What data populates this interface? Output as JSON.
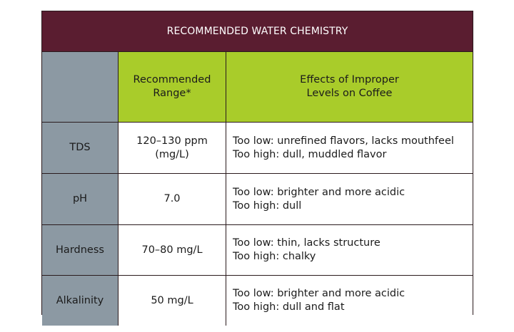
{
  "title": "RECOMMENDED WATER CHEMISTRY",
  "headers": {
    "range": [
      "Recommended",
      "Range*"
    ],
    "effects": [
      "Effects of Improper",
      "Levels on Coffee"
    ]
  },
  "rows": [
    {
      "label": "TDS",
      "range": [
        "120–130 ppm",
        "(mg/L)"
      ],
      "effects": [
        "Too low: unrefined flavors, lacks mouthfeel",
        "Too high: dull, muddled flavor"
      ]
    },
    {
      "label": "pH",
      "range": [
        "7.0"
      ],
      "effects": [
        "Too low: brighter and more acidic",
        "Too high: dull"
      ]
    },
    {
      "label": "Hardness",
      "range": [
        "70–80 mg/L"
      ],
      "effects": [
        "Too low: thin, lacks structure",
        "Too high: chalky"
      ]
    },
    {
      "label": "Alkalinity",
      "range": [
        "50 mg/L"
      ],
      "effects": [
        "Too low: brighter and more acidic",
        "Too high: dull and flat"
      ]
    }
  ],
  "colors": {
    "title_bg": "#5a1d30",
    "header_bg": "#a9cc2a",
    "label_bg": "#8c99a3",
    "border": "#2a1a1d"
  }
}
